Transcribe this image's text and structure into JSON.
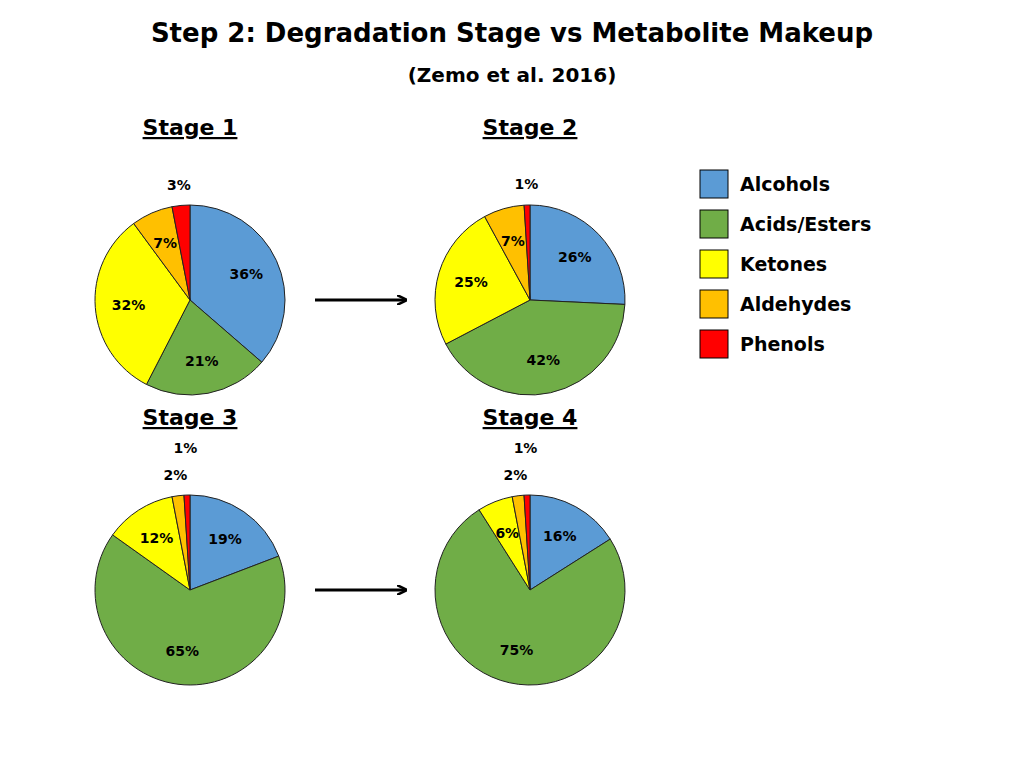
{
  "chart_data": {
    "type": "pie",
    "title": "Step 2: Degradation Stage vs Metabolite Makeup",
    "subtitle": "(Zemo et al. 2016)",
    "categories": [
      "Alcohols",
      "Acids/Esters",
      "Ketones",
      "Aldehydes",
      "Phenols"
    ],
    "colors": [
      "#5B9BD5",
      "#70AD47",
      "#FFFF00",
      "#FFC000",
      "#FF0000"
    ],
    "data_labels": true,
    "legend": "upper right",
    "series": [
      {
        "name": "Stage 1",
        "values": [
          36,
          21,
          32,
          7,
          3
        ],
        "value_labels": [
          "36%",
          "21%",
          "32%",
          "7%",
          "3%"
        ]
      },
      {
        "name": "Stage 2",
        "values": [
          26,
          42,
          25,
          7,
          1
        ],
        "value_labels": [
          "26%",
          "42%",
          "25%",
          "7%",
          "1%"
        ]
      },
      {
        "name": "Stage 3",
        "values": [
          19,
          65,
          12,
          2,
          1
        ],
        "value_labels": [
          "19%",
          "65%",
          "12%",
          "2%",
          "1%"
        ]
      },
      {
        "name": "Stage 4",
        "values": [
          16,
          75,
          6,
          2,
          1
        ],
        "value_labels": [
          "16%",
          "75%",
          "6%",
          "2%",
          "1%"
        ]
      }
    ]
  }
}
